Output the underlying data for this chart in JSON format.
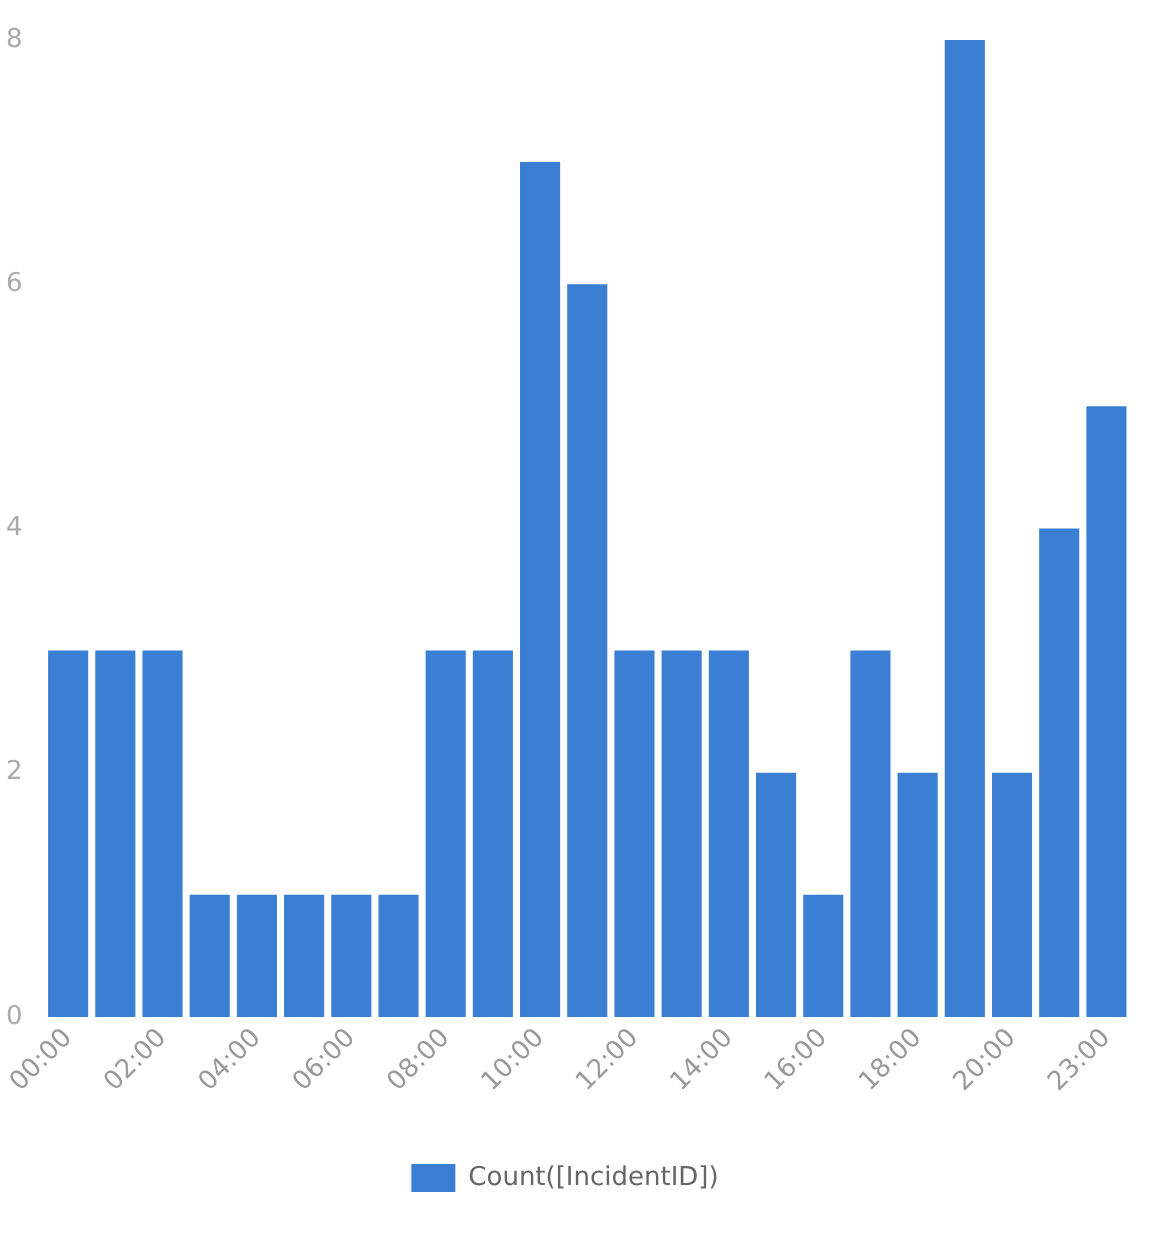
{
  "chart_data": {
    "type": "bar",
    "categories": [
      "00:00",
      null,
      "02:00",
      null,
      "04:00",
      null,
      "06:00",
      null,
      "08:00",
      null,
      "10:00",
      null,
      "12:00",
      null,
      "14:00",
      null,
      "16:00",
      null,
      "18:00",
      null,
      "20:00",
      null,
      "23:00"
    ],
    "series": [
      {
        "name": "Count([IncidentID])",
        "color": "#3b7fd4",
        "values": [
          3,
          3,
          3,
          1,
          1,
          1,
          1,
          1,
          3,
          3,
          7,
          6,
          3,
          3,
          3,
          2,
          1,
          3,
          2,
          8,
          2,
          4,
          5
        ]
      }
    ],
    "ylim": [
      0,
      8
    ],
    "yticks": [
      0,
      2,
      4,
      6,
      8
    ],
    "grid": false,
    "legend": "bottom"
  }
}
